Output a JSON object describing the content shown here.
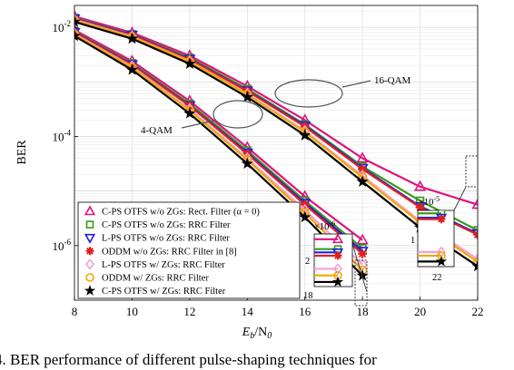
{
  "chart_data": {
    "type": "line",
    "x": [
      8,
      10,
      12,
      14,
      16,
      18,
      20,
      22
    ],
    "xlabel": "E",
    "xlabel_sub": "b",
    "xlabel_tail": "/N",
    "xlabel_sub2": "0",
    "ylabel": "BER",
    "xlim": [
      8,
      22
    ],
    "ylim_log10": [
      -7,
      -1.6
    ],
    "y_scale": "log",
    "grid": true,
    "x_tick_labels": [
      "8",
      "10",
      "12",
      "14",
      "16",
      "18",
      "20",
      "22"
    ],
    "y_ticks": [
      {
        "base": "10",
        "exp": "-2",
        "value": -2
      },
      {
        "base": "10",
        "exp": "-4",
        "value": -4
      },
      {
        "base": "10",
        "exp": "-6",
        "value": -6
      }
    ],
    "series": [
      {
        "name": "C-PS OTFS w/o ZGs: Rect. Filter (α = 0)",
        "color": "#e0147e",
        "marker": "triangle-up",
        "group16": [
          -1.8,
          -2.1,
          -2.52,
          -3.08,
          -3.7,
          -4.4,
          -4.92,
          -5.25
        ],
        "group4": [
          -2.05,
          -2.62,
          -3.35,
          -4.2,
          -5.1,
          -5.9
        ]
      },
      {
        "name": "C-PS OTFS w/o ZGs: RRC Filter",
        "color": "#3a9a1a",
        "marker": "square",
        "group16": [
          -1.83,
          -2.13,
          -2.56,
          -3.13,
          -3.78,
          -4.55,
          -5.18,
          -5.72
        ],
        "group4": [
          -2.08,
          -2.66,
          -3.4,
          -4.26,
          -5.18,
          -6.05
        ]
      },
      {
        "name": "L-PS OTFS w/o ZGs: RRC Filter",
        "color": "#2020e6",
        "marker": "triangle-down",
        "group16": [
          -1.84,
          -2.14,
          -2.58,
          -3.16,
          -3.8,
          -4.58,
          -5.28,
          -5.78
        ],
        "group4": [
          -2.09,
          -2.68,
          -3.43,
          -4.3,
          -5.22,
          -6.1
        ]
      },
      {
        "name": "ODDM w/o ZGs: RRC Filter in [8]",
        "color": "#e02020",
        "marker": "asterisk",
        "group16": [
          -1.85,
          -2.15,
          -2.59,
          -3.17,
          -3.82,
          -4.6,
          -5.3,
          -5.8
        ],
        "group4": [
          -2.1,
          -2.69,
          -3.44,
          -4.32,
          -5.25,
          -6.15
        ]
      },
      {
        "name": "L-PS OTFS w/ ZGs: RRC Filter",
        "color": "#f4a0d8",
        "marker": "diamond",
        "group16": [
          -1.86,
          -2.17,
          -2.62,
          -3.22,
          -3.9,
          -4.72,
          -5.55,
          -6.25
        ],
        "group4": [
          -2.12,
          -2.72,
          -3.5,
          -4.4,
          -5.35,
          -6.35
        ]
      },
      {
        "name": "ODDM w/ ZGs: RRC Filter",
        "color": "#f0a800",
        "marker": "circle",
        "group16": [
          -1.87,
          -2.18,
          -2.63,
          -3.23,
          -3.92,
          -4.75,
          -5.58,
          -6.3
        ],
        "group4": [
          -2.13,
          -2.74,
          -3.52,
          -4.43,
          -5.4,
          -6.45
        ]
      },
      {
        "name": "C-PS OTFS w/ ZGs: RRC Filter",
        "color": "#000000",
        "marker": "star",
        "group16": [
          -1.9,
          -2.21,
          -2.67,
          -3.28,
          -3.98,
          -4.83,
          -5.67,
          -6.38
        ],
        "group4": [
          -2.16,
          -2.78,
          -3.58,
          -4.5,
          -5.48,
          -6.55
        ]
      }
    ],
    "annotations": {
      "qam16": "16-QAM",
      "qam4": "4-QAM",
      "inset_left_exp_base": "×10",
      "inset_left_exp": "-6",
      "inset_left_ytick": "2",
      "inset_left_xtick": "18",
      "inset_right_exp_base": "×10",
      "inset_right_exp": "-5",
      "inset_right_ytick": "1",
      "inset_right_xtick": "22"
    },
    "legend_position": "bottom-left"
  },
  "caption": "4.  BER performance of different pulse-shaping techniques for"
}
